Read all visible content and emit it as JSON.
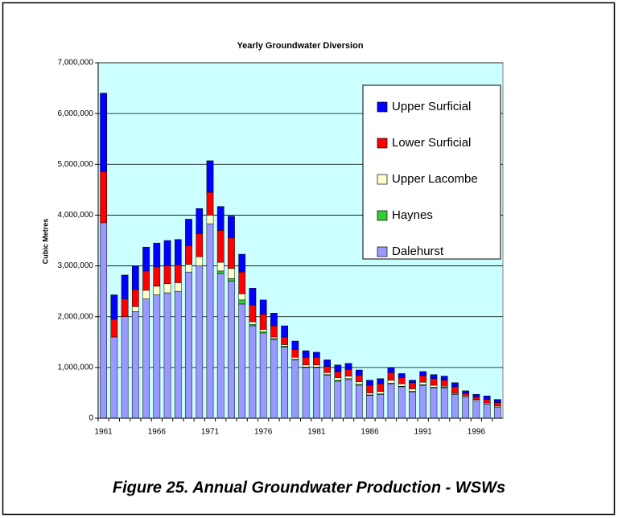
{
  "chart_data": {
    "type": "stacked_bar",
    "title": "Yearly Groundwater Diversion",
    "ylabel": "Cubic Metres",
    "categories": [
      "1961",
      null,
      null,
      null,
      null,
      "1966",
      null,
      null,
      null,
      null,
      "1971",
      null,
      null,
      null,
      null,
      "1976",
      null,
      null,
      null,
      null,
      "1981",
      null,
      null,
      null,
      null,
      "1986",
      null,
      null,
      null,
      null,
      "1991",
      null,
      null,
      null,
      null,
      "1996",
      null,
      null
    ],
    "series": [
      {
        "name": "Dalehurst",
        "color": "#9999ff",
        "values": [
          3850000,
          1600000,
          2000000,
          2100000,
          2350000,
          2430000,
          2470000,
          2500000,
          2880000,
          3000000,
          3830000,
          2850000,
          2700000,
          2250000,
          1820000,
          1680000,
          1550000,
          1400000,
          1150000,
          1000000,
          1000000,
          850000,
          730000,
          760000,
          650000,
          450000,
          470000,
          680000,
          620000,
          520000,
          650000,
          600000,
          600000,
          470000,
          420000,
          350000,
          280000,
          220000
        ]
      },
      {
        "name": "Haynes",
        "color": "#33cc33",
        "values": [
          0,
          0,
          0,
          0,
          0,
          0,
          0,
          0,
          0,
          0,
          0,
          50000,
          50000,
          80000,
          30000,
          20000,
          20000,
          20000,
          10000,
          10000,
          10000,
          10000,
          20000,
          20000,
          20000,
          10000,
          10000,
          10000,
          10000,
          10000,
          10000,
          10000,
          10000,
          10000,
          0,
          0,
          0,
          0
        ]
      },
      {
        "name": "Upper Lacombe",
        "color": "#ffffcc",
        "values": [
          0,
          0,
          0,
          100000,
          170000,
          170000,
          180000,
          170000,
          150000,
          180000,
          170000,
          170000,
          200000,
          120000,
          50000,
          50000,
          30000,
          30000,
          40000,
          40000,
          40000,
          40000,
          50000,
          50000,
          50000,
          40000,
          50000,
          60000,
          50000,
          50000,
          50000,
          40000,
          20000,
          20000,
          20000,
          20000,
          20000,
          20000
        ]
      },
      {
        "name": "Lower Surficial",
        "color": "#ff0000",
        "values": [
          1000000,
          350000,
          350000,
          330000,
          380000,
          380000,
          350000,
          350000,
          370000,
          450000,
          450000,
          630000,
          600000,
          430000,
          330000,
          300000,
          220000,
          150000,
          150000,
          150000,
          150000,
          120000,
          120000,
          130000,
          130000,
          150000,
          150000,
          150000,
          120000,
          120000,
          130000,
          130000,
          120000,
          120000,
          50000,
          50000,
          70000,
          70000
        ]
      },
      {
        "name": "Upper Surficial",
        "color": "#0000ff",
        "values": [
          1550000,
          480000,
          470000,
          470000,
          470000,
          470000,
          500000,
          500000,
          520000,
          500000,
          620000,
          470000,
          430000,
          350000,
          330000,
          280000,
          250000,
          220000,
          170000,
          130000,
          100000,
          130000,
          130000,
          120000,
          100000,
          100000,
          100000,
          100000,
          80000,
          50000,
          80000,
          80000,
          80000,
          80000,
          50000,
          50000,
          70000,
          60000
        ]
      }
    ],
    "ylim": [
      0,
      7000000
    ],
    "yticks": [
      0,
      {
        "value": 1000000,
        "label": "1,000,000"
      },
      {
        "value": 2000000,
        "label": "2,000,000"
      },
      {
        "value": 3000000,
        "label": "3,000,000"
      },
      {
        "value": 4000000,
        "label": "4,000,000"
      },
      {
        "value": 5000000,
        "label": "5,000,000"
      },
      {
        "value": 6000000,
        "label": "6,000,000"
      },
      {
        "value": 7000000,
        "label": "7,000,000"
      }
    ],
    "grid": true,
    "legend": "upper right",
    "plot_color": "#ccffff"
  },
  "figure_caption": "Figure 25. Annual Groundwater Production - WSWs"
}
